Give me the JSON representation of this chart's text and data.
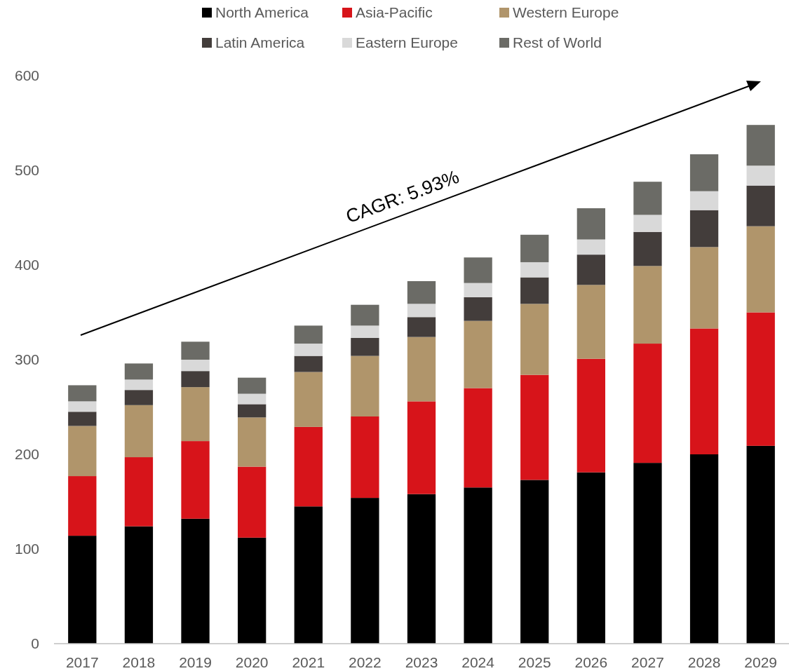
{
  "chart_data": {
    "type": "bar",
    "stacked": true,
    "categories": [
      "2017",
      "2018",
      "2019",
      "2020",
      "2021",
      "2022",
      "2023",
      "2024",
      "2025",
      "2026",
      "2027",
      "2028",
      "2029"
    ],
    "series": [
      {
        "name": "North America",
        "color": "#000000",
        "values": [
          114,
          124,
          132,
          112,
          145,
          154,
          158,
          165,
          173,
          181,
          191,
          200,
          209
        ]
      },
      {
        "name": "Asia-Pacific",
        "color": "#d7141a",
        "values": [
          63,
          73,
          82,
          75,
          84,
          86,
          98,
          105,
          111,
          120,
          126,
          133,
          141
        ]
      },
      {
        "name": "Western Europe",
        "color": "#b0956b",
        "values": [
          53,
          55,
          57,
          52,
          58,
          64,
          68,
          71,
          75,
          78,
          82,
          86,
          91
        ]
      },
      {
        "name": "Latin America",
        "color": "#433d3b",
        "values": [
          15,
          16,
          17,
          14,
          17,
          19,
          21,
          25,
          28,
          32,
          36,
          39,
          43
        ]
      },
      {
        "name": "Eastern Europe",
        "color": "#d9d9d9",
        "values": [
          11,
          11,
          12,
          11,
          13,
          13,
          14,
          15,
          16,
          16,
          18,
          20,
          21
        ]
      },
      {
        "name": "Rest of World",
        "color": "#6b6b66",
        "values": [
          17,
          17,
          19,
          17,
          19,
          22,
          24,
          27,
          29,
          33,
          35,
          39,
          43
        ]
      }
    ],
    "ylim": [
      0,
      600
    ],
    "yticks": [
      0,
      100,
      200,
      300,
      400,
      500,
      600
    ],
    "grid": false,
    "legend": "top",
    "annotations": [
      "CAGR: 5.93%"
    ]
  }
}
